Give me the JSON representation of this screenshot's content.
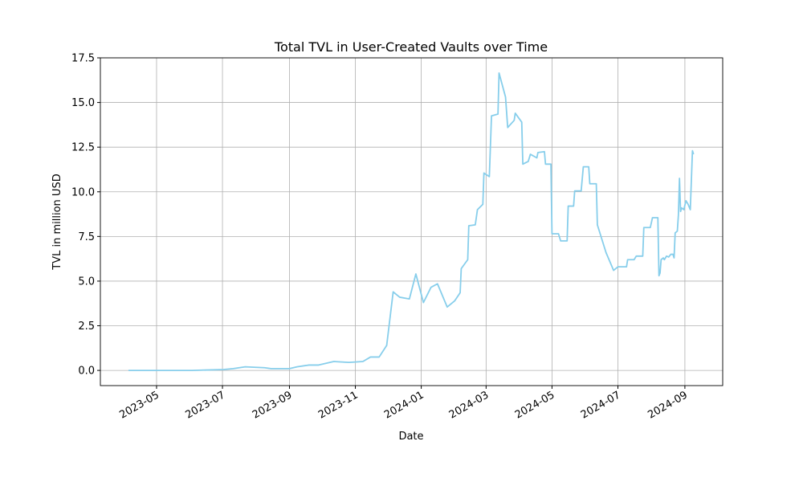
{
  "chart_data": {
    "type": "line",
    "title": "Total TVL in User-Created Vaults over Time",
    "x_label": "Date",
    "y_label": "TVL in million USD",
    "color": "#87ceeb",
    "grid": true,
    "x": [
      "2023-04-05",
      "2023-05-05",
      "2023-06-03",
      "2023-07-02",
      "2023-07-11",
      "2023-07-22",
      "2023-08-09",
      "2023-08-15",
      "2023-09-01",
      "2023-09-08",
      "2023-09-19",
      "2023-09-28",
      "2023-10-12",
      "2023-10-26",
      "2023-11-08",
      "2023-11-15",
      "2023-11-23",
      "2023-11-30",
      "2023-12-06",
      "2023-12-12",
      "2023-12-21",
      "2023-12-27",
      "2024-01-03",
      "2024-01-10",
      "2024-01-16",
      "2024-01-25",
      "2024-02-01",
      "2024-02-06",
      "2024-02-07",
      "2024-02-13",
      "2024-02-14",
      "2024-02-20",
      "2024-02-22",
      "2024-02-27",
      "2024-02-28",
      "2024-03-04",
      "2024-03-06",
      "2024-03-12",
      "2024-03-13",
      "2024-03-19",
      "2024-03-21",
      "2024-03-27",
      "2024-03-28",
      "2024-04-03",
      "2024-04-04",
      "2024-04-09",
      "2024-04-11",
      "2024-04-17",
      "2024-04-18",
      "2024-04-24",
      "2024-04-25",
      "2024-04-30",
      "2024-05-01",
      "2024-05-07",
      "2024-05-09",
      "2024-05-15",
      "2024-05-16",
      "2024-05-21",
      "2024-05-22",
      "2024-05-28",
      "2024-05-30",
      "2024-06-04",
      "2024-06-05",
      "2024-06-11",
      "2024-06-12",
      "2024-06-20",
      "2024-06-27",
      "2024-07-01",
      "2024-07-09",
      "2024-07-10",
      "2024-07-16",
      "2024-07-18",
      "2024-07-24",
      "2024-07-25",
      "2024-07-31",
      "2024-08-02",
      "2024-08-07",
      "2024-08-08",
      "2024-08-09",
      "2024-08-10",
      "2024-08-12",
      "2024-08-13",
      "2024-08-15",
      "2024-08-17",
      "2024-08-19",
      "2024-08-21",
      "2024-08-22",
      "2024-08-23",
      "2024-08-25",
      "2024-08-26",
      "2024-08-27",
      "2024-08-28",
      "2024-08-29",
      "2024-08-31",
      "2024-09-02",
      "2024-09-04",
      "2024-09-06",
      "2024-09-08",
      "2024-09-09"
    ],
    "values": [
      0,
      0,
      0,
      0.05,
      0.1,
      0.2,
      0.15,
      0.1,
      0.1,
      0.2,
      0.3,
      0.3,
      0.5,
      0.45,
      0.5,
      0.75,
      0.75,
      1.4,
      4.4,
      4.1,
      4.0,
      5.4,
      3.8,
      4.65,
      4.85,
      3.55,
      3.9,
      4.35,
      5.7,
      6.2,
      8.1,
      8.15,
      9.0,
      9.3,
      11.05,
      10.85,
      14.25,
      14.35,
      16.65,
      15.3,
      13.6,
      14.0,
      14.4,
      13.9,
      11.55,
      11.7,
      12.1,
      11.9,
      12.2,
      12.25,
      11.55,
      11.55,
      7.65,
      7.65,
      7.25,
      7.25,
      9.2,
      9.2,
      10.05,
      10.05,
      11.4,
      11.4,
      10.45,
      10.45,
      8.15,
      6.6,
      5.6,
      5.8,
      5.8,
      6.2,
      6.2,
      6.4,
      6.4,
      8.0,
      8.0,
      8.55,
      8.55,
      5.3,
      5.45,
      6.2,
      6.3,
      6.2,
      6.4,
      6.35,
      6.5,
      6.5,
      6.3,
      7.7,
      7.8,
      8.7,
      10.75,
      8.9,
      9.1,
      9.0,
      9.5,
      9.3,
      9.0,
      12.3,
      12.1
    ],
    "xlim": [
      "2023-03-10",
      "2024-10-06"
    ],
    "xticks": [
      {
        "value": "2023-05-01",
        "label": "2023-05"
      },
      {
        "value": "2023-07-01",
        "label": "2023-07"
      },
      {
        "value": "2023-09-01",
        "label": "2023-09"
      },
      {
        "value": "2023-11-01",
        "label": "2023-11"
      },
      {
        "value": "2024-01-01",
        "label": "2024-01"
      },
      {
        "value": "2024-03-01",
        "label": "2024-03"
      },
      {
        "value": "2024-05-01",
        "label": "2024-05"
      },
      {
        "value": "2024-07-01",
        "label": "2024-07"
      },
      {
        "value": "2024-09-01",
        "label": "2024-09"
      }
    ],
    "ylim": [
      -0.85,
      17.5
    ],
    "yticks": [
      {
        "value": 0,
        "label": "0.0"
      },
      2.5,
      {
        "value": 5,
        "label": "5.0"
      },
      7.5,
      {
        "value": 10,
        "label": "10.0"
      },
      12.5,
      {
        "value": 15,
        "label": "15.0"
      },
      17.5
    ]
  }
}
